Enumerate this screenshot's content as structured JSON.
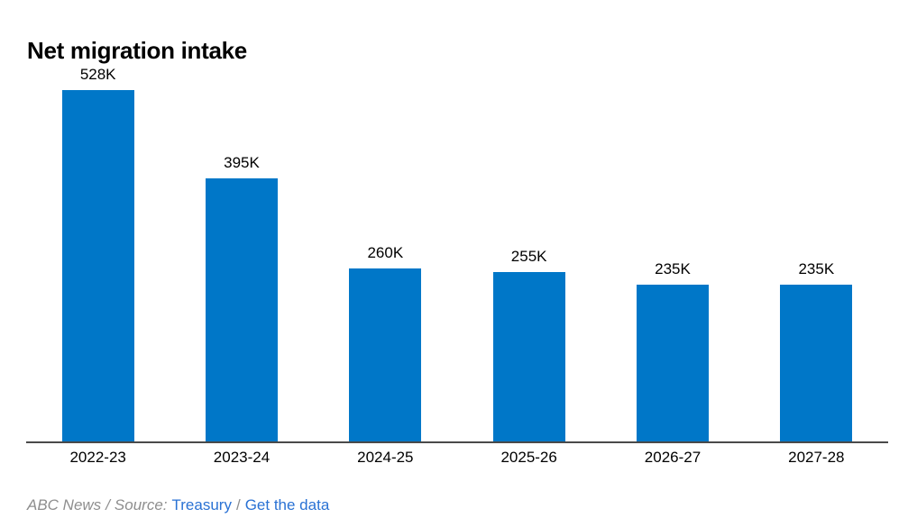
{
  "header": {
    "title": "Net migration intake"
  },
  "chart_data": {
    "type": "bar",
    "title": "Net migration intake",
    "categories": [
      "2022-23",
      "2023-24",
      "2024-25",
      "2025-26",
      "2026-27",
      "2027-28"
    ],
    "values": [
      528,
      395,
      260,
      255,
      235,
      235
    ],
    "value_labels": [
      "528K",
      "395K",
      "260K",
      "255K",
      "235K",
      "235K"
    ],
    "xlabel": "",
    "ylabel": "",
    "grid": false,
    "legend": false,
    "bar_color": "#0077c8"
  },
  "footer": {
    "credit": "ABC News",
    "separator": "/",
    "source_label": "Source:",
    "source_link": "Treasury",
    "get_data_link": "Get the data"
  },
  "colors": {
    "bar": "#0077c8",
    "link": "#2a72d4",
    "muted_text": "#8e8e8e",
    "axis_line": "#4a4a4a",
    "text": "#000000",
    "background": "#ffffff"
  }
}
